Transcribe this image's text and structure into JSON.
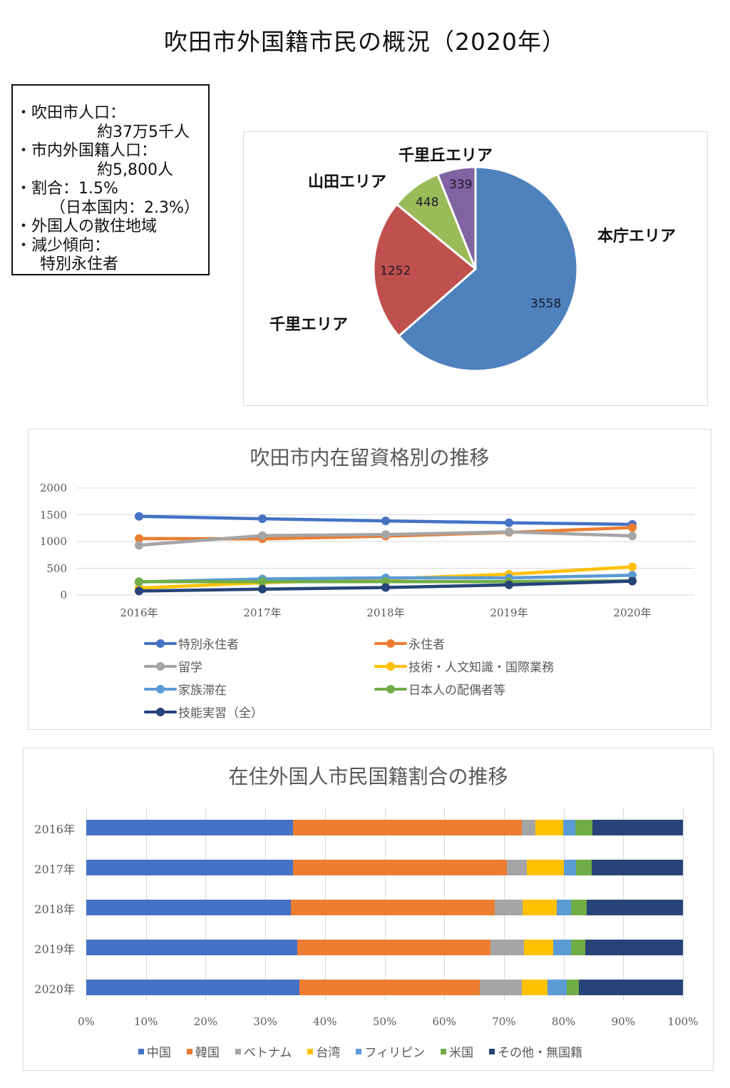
{
  "page": {
    "title": "吹田市外国籍市民の概況（2020年）"
  },
  "info_box": {
    "lines": [
      "・吹田市人口：",
      "約37万5千人",
      "・市内外国籍人口：",
      "約5,800人",
      "・割合：1.5%",
      "（日本国内：2.3%）",
      "・外国人の散住地域",
      "・減少傾向：",
      "特別永住者"
    ]
  },
  "colors": {
    "blue": "#4472C4",
    "orange": "#ED7D31",
    "gray": "#A5A5A5",
    "yellow": "#FFC000",
    "lightblue": "#5B9BD5",
    "green": "#70AD47",
    "navy": "#264478",
    "pie_blue": "#4F81BD",
    "pie_red": "#C0504D",
    "pie_green": "#9BBB59",
    "pie_purple": "#8064A2"
  },
  "chart_data": [
    {
      "type": "pie",
      "title": "",
      "categories": [
        "本庁エリア",
        "千里エリア",
        "山田エリア",
        "千里丘エリア"
      ],
      "values": [
        3558,
        1252,
        448,
        339
      ],
      "colors": [
        "#4F81BD",
        "#C0504D",
        "#9BBB59",
        "#8064A2"
      ],
      "labels": {
        "honcho": "本庁エリア",
        "senri": "千里エリア",
        "yamada": "山田エリア",
        "senrioka": "千里丘エリア"
      },
      "value_labels": {
        "honcho": "3558",
        "senri": "1252",
        "yamada": "448",
        "senrioka": "339"
      }
    },
    {
      "type": "line",
      "title": "吹田市内在留資格別の推移",
      "categories": [
        "2016年",
        "2017年",
        "2018年",
        "2019年",
        "2020年"
      ],
      "ylim": [
        0,
        2000
      ],
      "yticks": [
        "2000",
        "1500",
        "1000",
        "500",
        "0"
      ],
      "grid": true,
      "legend_position": "bottom",
      "series": [
        {
          "name": "特別永住者",
          "color": "#4472C4",
          "values": [
            1470,
            1425,
            1385,
            1350,
            1320
          ]
        },
        {
          "name": "永住者",
          "color": "#ED7D31",
          "values": [
            1055,
            1050,
            1100,
            1170,
            1260
          ]
        },
        {
          "name": "留学",
          "color": "#A5A5A5",
          "values": [
            930,
            1110,
            1130,
            1180,
            1105
          ]
        },
        {
          "name": "技術・人文知識・国際業務",
          "color": "#FFC000",
          "values": [
            130,
            230,
            300,
            390,
            525
          ]
        },
        {
          "name": "家族滞在",
          "color": "#5B9BD5",
          "values": [
            245,
            300,
            320,
            320,
            370
          ]
        },
        {
          "name": "日本人の配偶者等",
          "color": "#70AD47",
          "values": [
            250,
            250,
            250,
            250,
            265
          ]
        },
        {
          "name": "技能実習（全）",
          "color": "#264478",
          "values": [
            75,
            110,
            140,
            190,
            260
          ]
        }
      ]
    },
    {
      "type": "bar",
      "orientation": "horizontal",
      "stacked": "percent",
      "title": "在住外国人市民国籍割合の推移",
      "categories": [
        "2016年",
        "2017年",
        "2018年",
        "2019年",
        "2020年"
      ],
      "xticks": [
        "0%",
        "10%",
        "20%",
        "30%",
        "40%",
        "50%",
        "60%",
        "70%",
        "80%",
        "90%",
        "100%"
      ],
      "xlim": [
        0,
        100
      ],
      "legend_position": "bottom",
      "series": [
        {
          "name": "中国",
          "color": "#4472C4",
          "values": [
            34.7,
            34.6,
            34.3,
            35.4,
            35.7
          ]
        },
        {
          "name": "韓国",
          "color": "#ED7D31",
          "values": [
            38.3,
            35.9,
            34.2,
            32.4,
            30.2
          ]
        },
        {
          "name": "ベトナム",
          "color": "#A5A5A5",
          "values": [
            2.3,
            3.3,
            4.6,
            5.6,
            7.1
          ]
        },
        {
          "name": "台湾",
          "color": "#FFC000",
          "values": [
            4.6,
            6.2,
            5.8,
            4.8,
            4.3
          ]
        },
        {
          "name": "フィリピン",
          "color": "#5B9BD5",
          "values": [
            2.1,
            2.1,
            2.4,
            3.1,
            3.2
          ]
        },
        {
          "name": "米国",
          "color": "#70AD47",
          "values": [
            2.8,
            2.6,
            2.6,
            2.3,
            2.1
          ]
        },
        {
          "name": "その他・無国籍",
          "color": "#264478",
          "values": [
            15.2,
            15.3,
            16.1,
            16.4,
            17.4
          ]
        }
      ]
    }
  ]
}
